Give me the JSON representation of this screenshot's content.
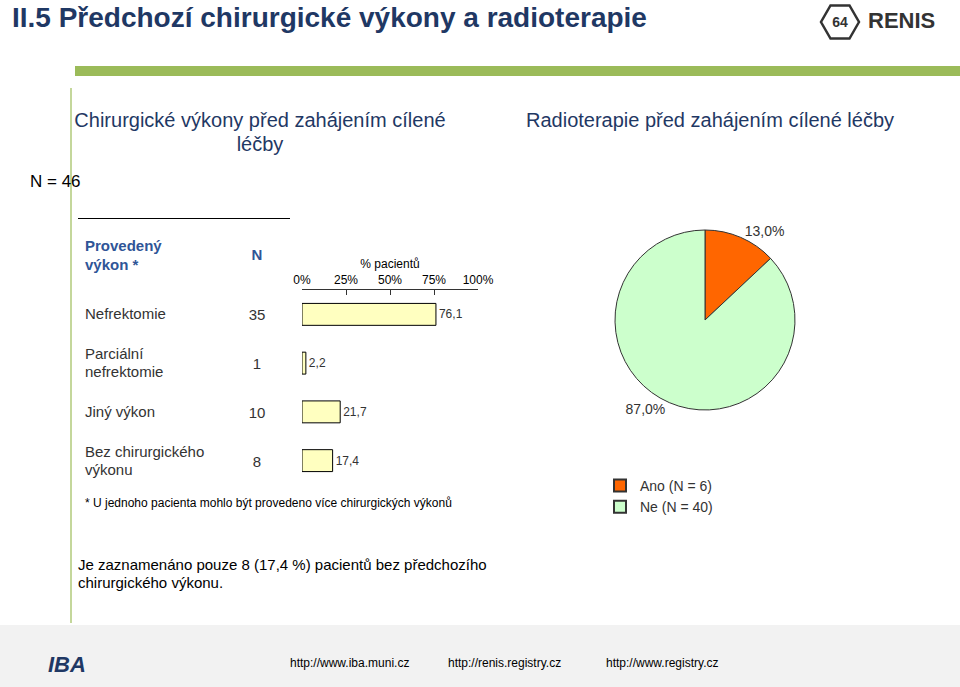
{
  "page": {
    "title": "II.5 Předchozí chirurgické výkony a radioterapie",
    "badge": "64",
    "brand": "RENIS",
    "n_total": "N = 46",
    "conclusion": "Je zaznamenáno pouze 8 (17,4 %) pacientů bez předchozího chirurgického výkonu.",
    "footer_links": [
      "http://www.iba.muni.cz",
      "http://renis.registry.cz",
      "http://www.registry.cz"
    ],
    "logo_text": "IBA"
  },
  "chart_data": [
    {
      "type": "bar",
      "title": "Chirurgické výkony před zahájením cílené léčby",
      "orientation": "horizontal",
      "category_header": "Provedený výkon *",
      "n_header": "N",
      "xlabel": "% pacientů",
      "categories": [
        "Nefrektomie",
        "Parciální nefrektomie",
        "Jiný výkon",
        "Bez chirurgického výkonu"
      ],
      "n": [
        35,
        1,
        10,
        8
      ],
      "values": [
        76.1,
        2.2,
        21.7,
        17.4
      ],
      "value_labels": [
        "76,1",
        "2,2",
        "21,7",
        "17,4"
      ],
      "xlim": [
        0,
        100
      ],
      "xticks": [
        {
          "value": 0,
          "label": "0%"
        },
        {
          "value": 25,
          "label": "25%"
        },
        {
          "value": 50,
          "label": "50%"
        },
        {
          "value": 75,
          "label": "75%"
        },
        {
          "value": 100,
          "label": "100%"
        }
      ],
      "color": "#ffffc0",
      "data_labels": true,
      "grid": false,
      "annotations": [
        "* U jednoho pacienta mohlo být provedeno více chirurgických výkonů"
      ]
    },
    {
      "type": "pie",
      "title": "Radioterapie před zahájením cílené léčby",
      "categories": [
        "Ano (N = 6)",
        "Ne (N = 40)"
      ],
      "values": [
        13.0,
        87.0
      ],
      "value_labels": [
        "13,0%",
        "87,0%"
      ],
      "colors": [
        "#ff6600",
        "#ccffcc"
      ],
      "data_labels": true,
      "legend": "bottom"
    }
  ]
}
